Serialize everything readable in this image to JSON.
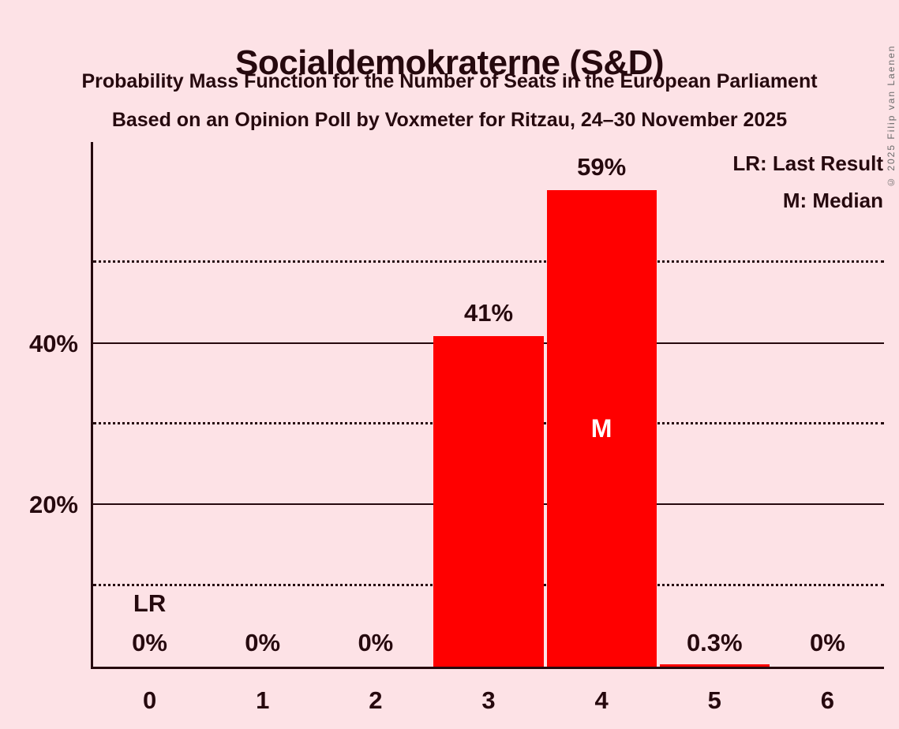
{
  "page": {
    "copyright": "© 2025 Filip van Laenen",
    "background_color": "#FDE2E6",
    "text_color": "#26090E"
  },
  "header": {
    "title": "Socialdemokraterne (S&D)",
    "subtitle_line1": "Probability Mass Function for the Number of Seats in the European Parliament",
    "subtitle_line2": "Based on an Opinion Poll by Voxmeter for Ritzau, 24–30 November 2025"
  },
  "legend": {
    "lr": "LR: Last Result",
    "m": "M: Median"
  },
  "chart_data": {
    "type": "bar",
    "title": "Socialdemokraterne (S&D)",
    "categories": [
      "0",
      "1",
      "2",
      "3",
      "4",
      "5",
      "6"
    ],
    "values": [
      0,
      0,
      0,
      41,
      59,
      0.3,
      0
    ],
    "value_labels": [
      "0%",
      "0%",
      "0%",
      "41%",
      "59%",
      "0.3%",
      "0%"
    ],
    "ylim": [
      0,
      65
    ],
    "yticks": [
      {
        "pct": 20,
        "label": "20%"
      },
      {
        "pct": 40,
        "label": "40%"
      }
    ],
    "gridlines_solid_pct": [
      20,
      40
    ],
    "gridlines_dotted_pct": [
      10,
      30,
      50
    ],
    "grid": true,
    "legend_position": "top-right",
    "bar_color": "#FF0000",
    "annotations": {
      "last_result": {
        "category_index": 0,
        "label": "LR"
      },
      "median": {
        "category_index": 4,
        "label": "M",
        "color": "#FFFFFF"
      }
    }
  }
}
